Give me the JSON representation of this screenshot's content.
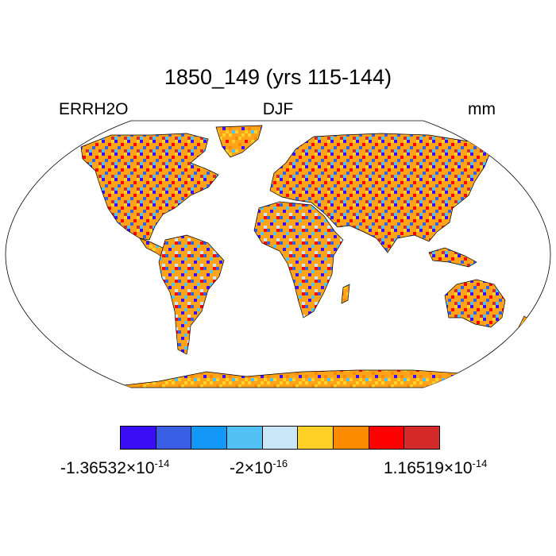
{
  "title": "1850_149 (yrs 115-144)",
  "variable": "ERRH2O",
  "season": "DJF",
  "units": "mm",
  "colorbar": {
    "colors": [
      "#3a0ef7",
      "#3a5ee3",
      "#1398f8",
      "#52c2f5",
      "#c9e7f8",
      "#ffd026",
      "#ff8c00",
      "#ff0000",
      "#d42a2a"
    ],
    "labels": [
      {
        "mantissa": "-1.36532",
        "times": "×",
        "base": "10",
        "exponent": "-14"
      },
      {
        "mantissa": "-2",
        "times": "×",
        "base": "10",
        "exponent": "-16"
      },
      {
        "mantissa": "1.16519",
        "times": "×",
        "base": "10",
        "exponent": "-14"
      }
    ]
  },
  "map": {
    "projection": "Robinson",
    "background_land_color": "#ffa31a",
    "ocean_color": "#ffffff"
  }
}
